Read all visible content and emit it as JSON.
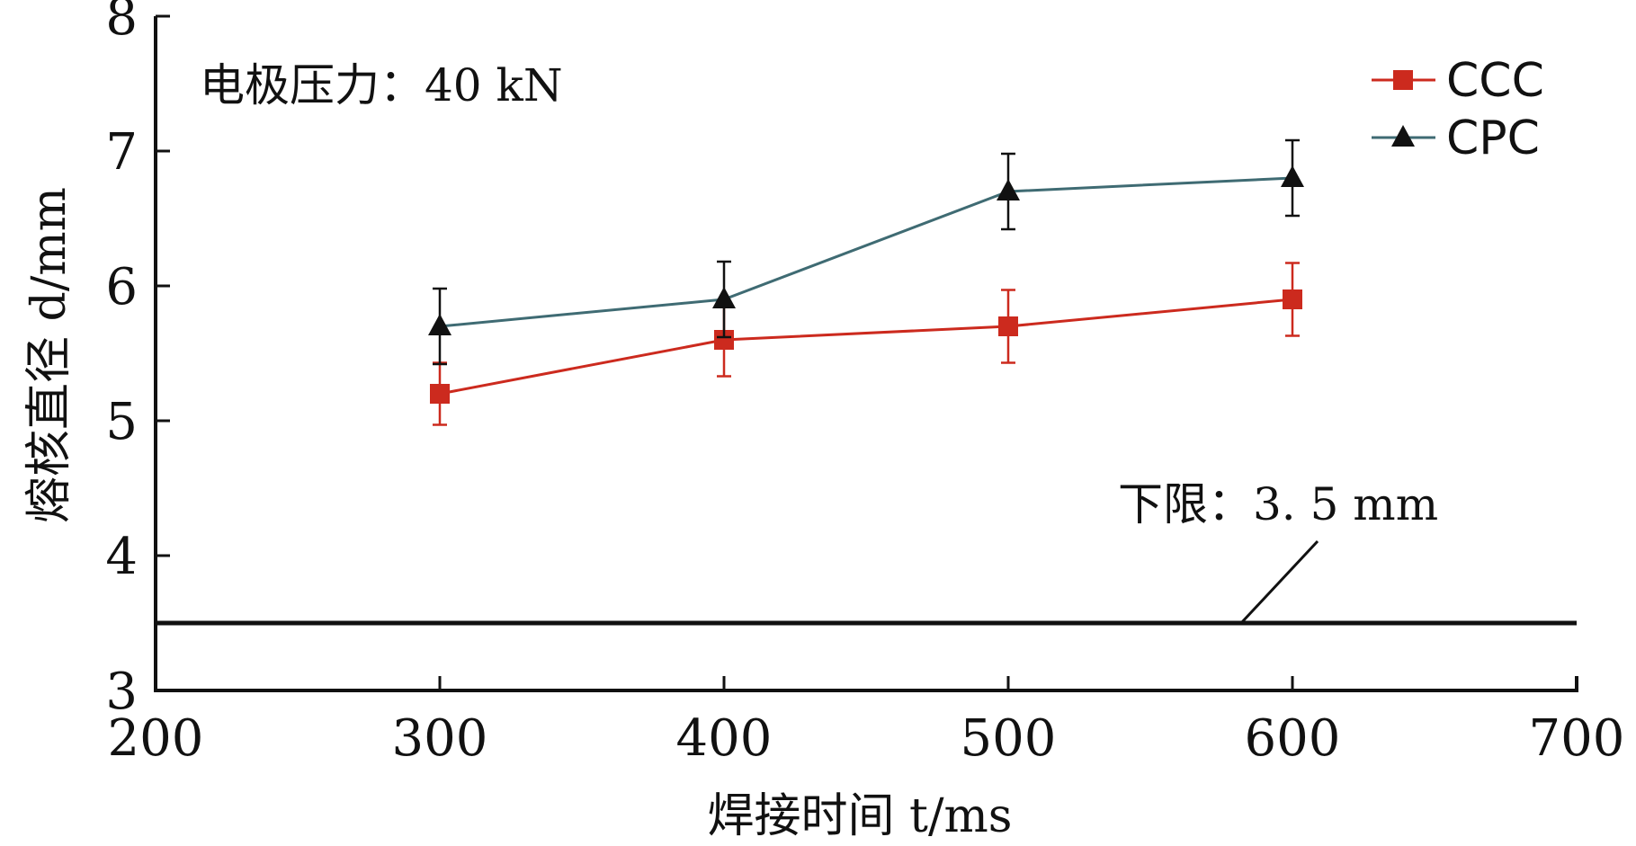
{
  "chart_data": {
    "type": "line",
    "x": [
      300,
      400,
      500,
      600
    ],
    "series": [
      {
        "name": "CCC",
        "color": "#cc2a1e",
        "line_color": "#cc2a1e",
        "marker": "square",
        "values": [
          5.2,
          5.6,
          5.7,
          5.9
        ],
        "errors": [
          0.23,
          0.27,
          0.27,
          0.27
        ]
      },
      {
        "name": "CPC",
        "color": "#111111",
        "line_color": "#3f6b73",
        "marker": "triangle",
        "values": [
          5.7,
          5.9,
          6.7,
          6.8
        ],
        "errors": [
          0.28,
          0.28,
          0.28,
          0.28
        ]
      }
    ],
    "xlim": [
      200,
      700
    ],
    "ylim": [
      3,
      8
    ],
    "xticks": [
      "200",
      "300",
      "400",
      "500",
      "600",
      "700"
    ],
    "yticks": [
      "3",
      "4",
      "5",
      "6",
      "7",
      "8"
    ],
    "xlabel": "焊接时间 t/ms",
    "ylabel": "熔核直径 d/mm",
    "reference_line": {
      "y": 3.5,
      "label": "下限：3. 5 mm"
    },
    "annotation": "电极压力：40 kN",
    "legend": "top-right",
    "grid": false
  }
}
